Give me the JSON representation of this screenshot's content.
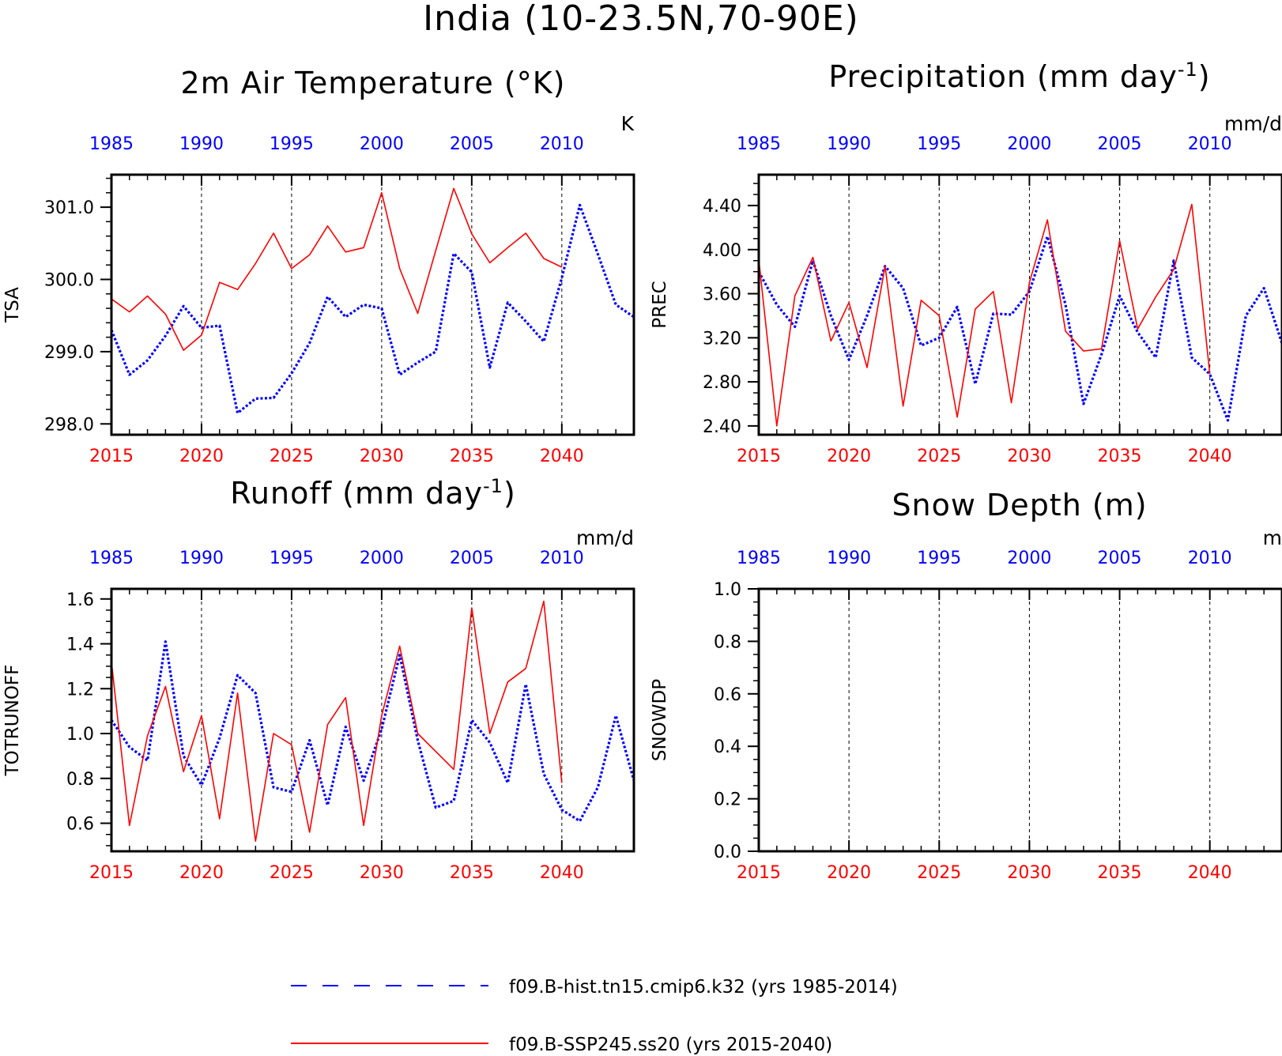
{
  "title": "India (10-23.5N,70-90E)",
  "colors": {
    "hist": "#0000ff",
    "ssp": "#ff0000",
    "axis": "#000000"
  },
  "legend": {
    "hist_label": "f09.B-hist.tn15.cmip6.k32 (yrs 1985-2014)",
    "ssp_label": "f09.B-SSP245.ss20 (yrs 2015-2040)"
  },
  "top_ticks": [
    "1985",
    "1990",
    "1995",
    "2000",
    "2005",
    "2010"
  ],
  "bottom_ticks": [
    "2015",
    "2020",
    "2025",
    "2030",
    "2035",
    "2040"
  ],
  "chart_data": [
    {
      "type": "line",
      "title": "2m Air Temperature (°K)",
      "title_main": "2m Air Temperature (°K)",
      "title_sup": "",
      "title_end": "",
      "units": "K",
      "ylabel": "TSA",
      "ylim": [
        297.85,
        301.45
      ],
      "yticks": [
        298.0,
        299.0,
        300.0,
        301.0
      ],
      "ytick_labels": [
        "298.0",
        "299.0",
        "300.0",
        "301.0"
      ],
      "yminor": 0.2,
      "xlim": [
        2015,
        2044
      ],
      "series": [
        {
          "name": "f09.B-hist.tn15.cmip6.k32 (yrs 1985-2014)",
          "style": "dotted",
          "x": [
            1985,
            1986,
            1987,
            1988,
            1989,
            1990,
            1991,
            1992,
            1993,
            1994,
            1995,
            1996,
            1997,
            1998,
            1999,
            2000,
            2001,
            2002,
            2003,
            2004,
            2005,
            2006,
            2007,
            2008,
            2009,
            2010,
            2011,
            2012,
            2013,
            2014
          ],
          "values": [
            299.3,
            298.68,
            298.88,
            299.22,
            299.63,
            299.33,
            299.36,
            298.15,
            298.35,
            298.36,
            298.7,
            299.12,
            299.76,
            299.48,
            299.65,
            299.6,
            298.68,
            298.85,
            299.0,
            300.36,
            300.1,
            298.78,
            299.68,
            299.42,
            299.14,
            300.02,
            301.03,
            300.35,
            299.65,
            299.48
          ]
        },
        {
          "name": "f09.B-SSP245.ss20 (yrs 2015-2040)",
          "style": "solid",
          "x": [
            2015,
            2016,
            2017,
            2018,
            2019,
            2020,
            2021,
            2022,
            2023,
            2024,
            2025,
            2026,
            2027,
            2028,
            2029,
            2030,
            2031,
            2032,
            2033,
            2034,
            2035,
            2036,
            2037,
            2038,
            2039,
            2040
          ],
          "values": [
            299.73,
            299.55,
            299.77,
            299.52,
            299.02,
            299.23,
            299.96,
            299.86,
            300.22,
            300.64,
            300.15,
            300.34,
            300.74,
            300.38,
            300.44,
            301.2,
            300.15,
            299.53,
            300.4,
            301.26,
            300.63,
            300.23,
            300.44,
            300.64,
            300.29,
            300.17
          ]
        }
      ]
    },
    {
      "type": "line",
      "title": "Precipitation (mm day-1)",
      "title_main": "Precipitation (mm day",
      "title_sup": "-1",
      "title_end": ")",
      "units": "mm/d",
      "ylabel": "PREC",
      "ylim": [
        2.32,
        4.68
      ],
      "yticks": [
        2.4,
        2.8,
        3.2,
        3.6,
        4.0,
        4.4
      ],
      "ytick_labels": [
        "2.40",
        "2.80",
        "3.20",
        "3.60",
        "4.00",
        "4.40"
      ],
      "yminor": 0.1,
      "xlim": [
        2015,
        2044
      ],
      "series": [
        {
          "name": "f09.B-hist.tn15.cmip6.k32 (yrs 1985-2014)",
          "style": "dotted",
          "x": [
            1985,
            1986,
            1987,
            1988,
            1989,
            1990,
            1991,
            1992,
            1993,
            1994,
            1995,
            1996,
            1997,
            1998,
            1999,
            2000,
            2001,
            2002,
            2003,
            2004,
            2005,
            2006,
            2007,
            2008,
            2009,
            2010,
            2011,
            2012,
            2013,
            2014
          ],
          "values": [
            3.8,
            3.5,
            3.3,
            3.9,
            3.4,
            3.0,
            3.4,
            3.85,
            3.65,
            3.13,
            3.2,
            3.48,
            2.78,
            3.42,
            3.41,
            3.62,
            4.12,
            3.5,
            2.6,
            3.05,
            3.58,
            3.25,
            3.02,
            3.9,
            3.02,
            2.87,
            2.45,
            3.4,
            3.65,
            3.15
          ]
        },
        {
          "name": "f09.B-SSP245.ss20 (yrs 2015-2040)",
          "style": "solid",
          "x": [
            2015,
            2016,
            2017,
            2018,
            2019,
            2020,
            2021,
            2022,
            2023,
            2024,
            2025,
            2026,
            2027,
            2028,
            2029,
            2030,
            2031,
            2032,
            2033,
            2034,
            2035,
            2036,
            2037,
            2038,
            2039,
            2040
          ],
          "values": [
            3.91,
            2.4,
            3.58,
            3.93,
            3.17,
            3.52,
            2.93,
            3.85,
            2.58,
            3.54,
            3.4,
            2.48,
            3.46,
            3.62,
            2.61,
            3.7,
            4.27,
            3.26,
            3.08,
            3.1,
            4.08,
            3.28,
            3.57,
            3.82,
            4.41,
            2.87
          ]
        }
      ]
    },
    {
      "type": "line",
      "title": "Runoff (mm day-1)",
      "title_main": "Runoff (mm day",
      "title_sup": "-1",
      "title_end": ")",
      "units": "mm/d",
      "ylabel": "TOTRUNOFF",
      "ylim": [
        0.475,
        1.645
      ],
      "yticks": [
        0.6,
        0.8,
        1.0,
        1.2,
        1.4,
        1.6
      ],
      "ytick_labels": [
        "0.6",
        "0.8",
        "1.0",
        "1.2",
        "1.4",
        "1.6"
      ],
      "yminor": 0.05,
      "xlim": [
        2015,
        2044
      ],
      "series": [
        {
          "name": "f09.B-hist.tn15.cmip6.k32 (yrs 1985-2014)",
          "style": "dotted",
          "x": [
            1985,
            1986,
            1987,
            1988,
            1989,
            1990,
            1991,
            1992,
            1993,
            1994,
            1995,
            1996,
            1997,
            1998,
            1999,
            2000,
            2001,
            2002,
            2003,
            2004,
            2005,
            2006,
            2007,
            2008,
            2009,
            2010,
            2011,
            2012,
            2013,
            2014
          ],
          "values": [
            1.06,
            0.94,
            0.88,
            1.41,
            0.9,
            0.77,
            0.98,
            1.26,
            1.18,
            0.76,
            0.74,
            0.97,
            0.68,
            1.03,
            0.79,
            1.02,
            1.35,
            0.97,
            0.67,
            0.7,
            1.06,
            0.96,
            0.78,
            1.22,
            0.82,
            0.66,
            0.61,
            0.76,
            1.08,
            0.79
          ]
        },
        {
          "name": "f09.B-SSP245.ss20 (yrs 2015-2040)",
          "style": "solid",
          "x": [
            2015,
            2016,
            2017,
            2018,
            2019,
            2020,
            2021,
            2022,
            2023,
            2024,
            2025,
            2026,
            2027,
            2028,
            2029,
            2030,
            2031,
            2032,
            2033,
            2034,
            2035,
            2036,
            2037,
            2038,
            2039,
            2040
          ],
          "values": [
            1.32,
            0.59,
            0.99,
            1.21,
            0.83,
            1.08,
            0.62,
            1.18,
            0.52,
            1.0,
            0.95,
            0.56,
            1.04,
            1.16,
            0.59,
            1.08,
            1.39,
            1.0,
            0.92,
            0.84,
            1.56,
            1.0,
            1.23,
            1.29,
            1.59,
            0.78
          ]
        }
      ]
    },
    {
      "type": "line",
      "title": "Snow Depth (m)",
      "title_main": "Snow Depth (m)",
      "title_sup": "",
      "title_end": "",
      "units": "m",
      "ylabel": "SNOWDP",
      "ylim": [
        0.0,
        1.0
      ],
      "yticks": [
        0.0,
        0.2,
        0.4,
        0.6,
        0.8,
        1.0
      ],
      "ytick_labels": [
        "0.0",
        "0.2",
        "0.4",
        "0.6",
        "0.8",
        "1.0"
      ],
      "yminor": 0.05,
      "xlim": [
        2015,
        2044
      ],
      "series": []
    }
  ]
}
